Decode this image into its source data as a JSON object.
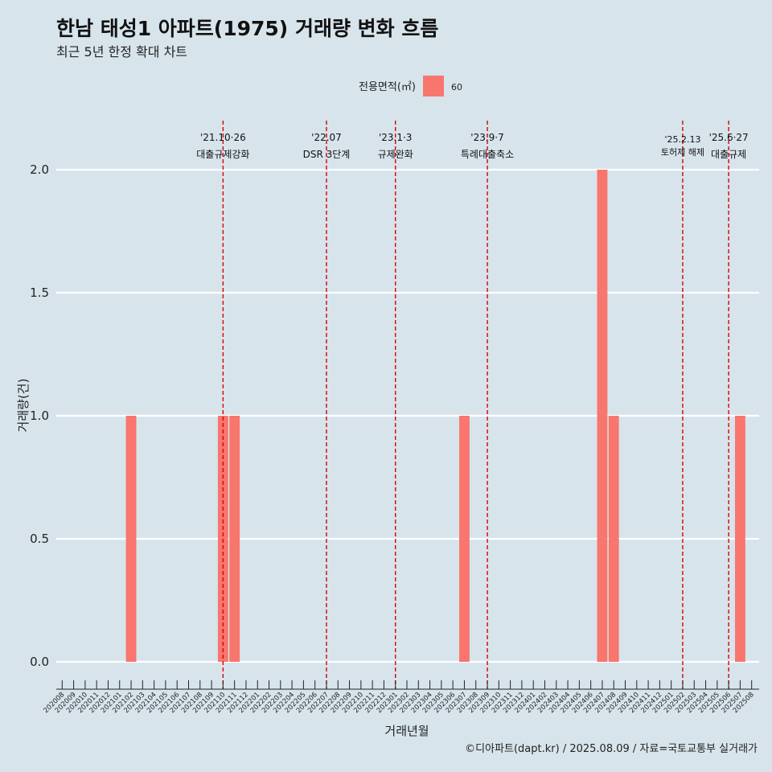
{
  "chart_data": {
    "type": "bar",
    "title": "한남 태성1 아파트(1975) 거래량 변화 흐름",
    "subtitle": "최근 5년 한정 확대 차트",
    "xlabel": "거래년월",
    "ylabel": "거래량(건)",
    "caption": "©디아파트(dapt.kr) / 2025.08.09 / 자료=국토교통부 실거래가",
    "legend": {
      "title": "전용면적(㎡)",
      "position": "top",
      "entries": [
        {
          "label": "60",
          "color": "#f8766d"
        }
      ]
    },
    "ylim": [
      0,
      2
    ],
    "yticks": [
      "0.0",
      "0.5",
      "1.0",
      "1.5",
      "2.0"
    ],
    "grid": true,
    "categories": [
      "202008",
      "202009",
      "202010",
      "202011",
      "202012",
      "202101",
      "202102",
      "202103",
      "202104",
      "202105",
      "202106",
      "202107",
      "202108",
      "202109",
      "202110",
      "202111",
      "202112",
      "202201",
      "202202",
      "202203",
      "202204",
      "202205",
      "202206",
      "202207",
      "202208",
      "202209",
      "202210",
      "202211",
      "202212",
      "202301",
      "202302",
      "202303",
      "202304",
      "202305",
      "202306",
      "202307",
      "202308",
      "202309",
      "202310",
      "202311",
      "202312",
      "202401",
      "202402",
      "202403",
      "202404",
      "202405",
      "202406",
      "202407",
      "202408",
      "202409",
      "202410",
      "202411",
      "202412",
      "202501",
      "202502",
      "202503",
      "202504",
      "202505",
      "202506",
      "202507",
      "202508"
    ],
    "series": [
      {
        "name": "60",
        "color": "#f8766d",
        "values": [
          0,
          0,
          0,
          0,
          0,
          0,
          1,
          0,
          0,
          0,
          0,
          0,
          0,
          0,
          1,
          1,
          0,
          0,
          0,
          0,
          0,
          0,
          0,
          0,
          0,
          0,
          0,
          0,
          0,
          0,
          0,
          0,
          0,
          0,
          0,
          1,
          0,
          0,
          0,
          0,
          0,
          0,
          0,
          0,
          0,
          0,
          0,
          2,
          1,
          0,
          0,
          0,
          0,
          0,
          0,
          0,
          0,
          0,
          0,
          1,
          0
        ]
      }
    ],
    "annotations": [
      {
        "x": "202110",
        "date": "'21.10·26",
        "label": "대출규제강화",
        "color": "#dd0000"
      },
      {
        "x": "202207",
        "date": "'22.07",
        "label": "DSR 3단계",
        "color": "#dd0000"
      },
      {
        "x": "202301",
        "date": "'23.1·3",
        "label": "규제완화",
        "color": "#dd0000"
      },
      {
        "x": "202309",
        "date": "'23.9·7",
        "label": "특례대출축소",
        "color": "#dd0000"
      },
      {
        "x": "202502",
        "date": "'25.2.13",
        "label": "토허제 해제",
        "color": "#dd0000"
      },
      {
        "x": "202506",
        "date": "'25.6·27",
        "label": "대출규제",
        "color": "#dd0000"
      }
    ]
  }
}
